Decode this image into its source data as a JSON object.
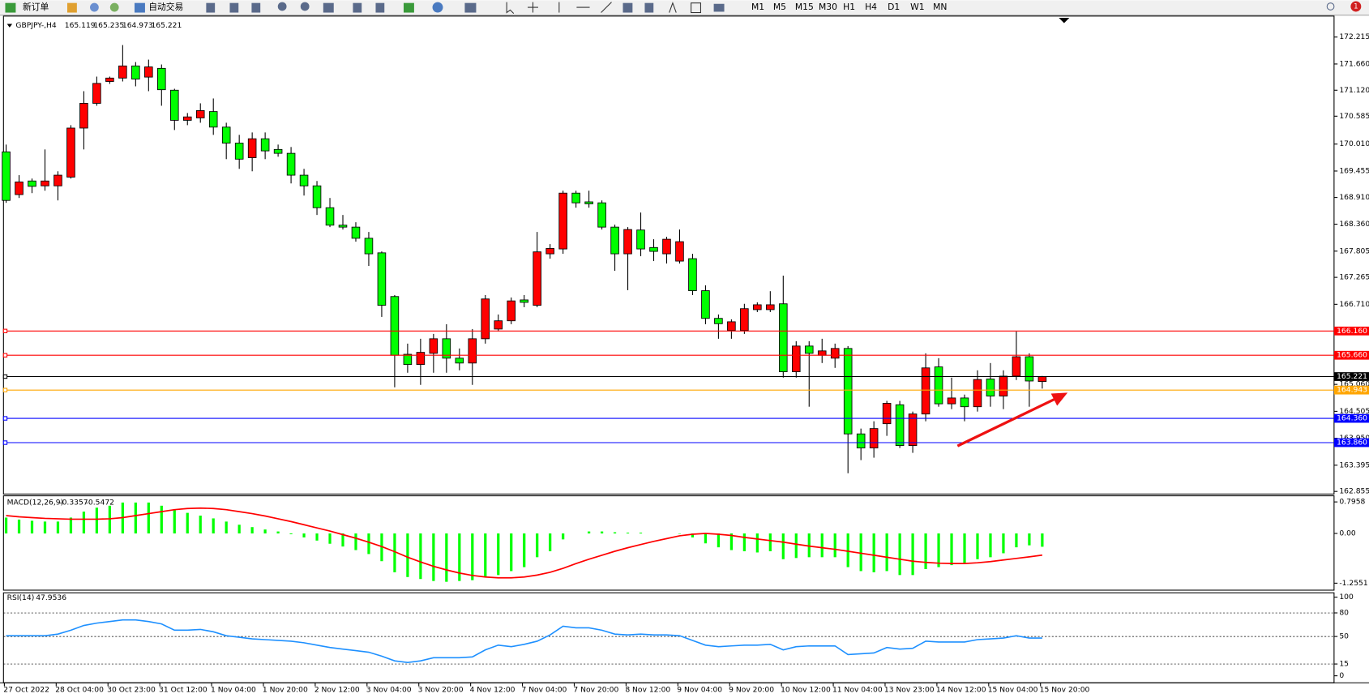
{
  "toolbar": {
    "new_order": "新订单",
    "auto_trading": "自动交易",
    "timeframes": [
      "M1",
      "M5",
      "M15",
      "M30",
      "H1",
      "H4",
      "D1",
      "W1",
      "MN"
    ],
    "badge": "1"
  },
  "chart_data": [
    {
      "type": "candlestick",
      "title": "GBPJPY-,H4",
      "up_color": "#ff0000",
      "down_color": "#00ff00",
      "categories": [
        "27 Oct 2022",
        null,
        null,
        null,
        "28 Oct 04:00",
        null,
        null,
        null,
        "30 Oct 23:00",
        null,
        null,
        null,
        "31 Oct 12:00",
        null,
        null,
        null,
        "1 Nov 04:00",
        null,
        null,
        null,
        "1 Nov 20:00",
        null,
        null,
        null,
        "2 Nov 12:00",
        null,
        null,
        null,
        "3 Nov 04:00",
        null,
        null,
        null,
        "3 Nov 20:00",
        null,
        null,
        null,
        "4 Nov 12:00",
        null,
        null,
        null,
        "7 Nov 04:00",
        null,
        null,
        null,
        "7 Nov 20:00",
        null,
        null,
        null,
        "8 Nov 12:00",
        null,
        null,
        null,
        "9 Nov 04:00",
        null,
        null,
        null,
        "9 Nov 20:00",
        null,
        null,
        null,
        "10 Nov 12:00",
        null,
        null,
        null,
        "11 Nov 04:00",
        null,
        null,
        null,
        "13 Nov 23:00",
        null,
        null,
        null,
        "14 Nov 12:00",
        null,
        null,
        null,
        "15 Nov 04:00",
        null,
        null,
        null,
        "15 Nov 20:00"
      ],
      "open": [
        169.85,
        168.97,
        169.25,
        169.15,
        169.15,
        169.33,
        170.34,
        170.85,
        171.3,
        171.37,
        171.62,
        171.39,
        171.57,
        171.12,
        170.5,
        170.55,
        170.68,
        170.36,
        170.03,
        169.73,
        170.12,
        169.9,
        169.82,
        169.37,
        169.15,
        168.7,
        168.34,
        168.3,
        168.07,
        167.77,
        166.87,
        165.68,
        165.47,
        165.7,
        166.0,
        165.6,
        165.5,
        166.0,
        166.2,
        166.37,
        166.8,
        166.69,
        167.75,
        167.85,
        169.0,
        168.82,
        168.8,
        168.3,
        167.75,
        168.24,
        167.88,
        167.75,
        167.6,
        167.65,
        166.99,
        166.42,
        166.17,
        166.17,
        166.6,
        166.6,
        166.72,
        165.32,
        165.85,
        165.66,
        165.6,
        165.8,
        164.04,
        163.75,
        164.25,
        164.64,
        163.8,
        164.45,
        165.42,
        164.66,
        164.78,
        164.6,
        165.17,
        164.82,
        165.23,
        165.63,
        165.119
      ],
      "high": [
        170.0,
        169.37,
        169.3,
        169.9,
        169.45,
        170.4,
        171.1,
        171.4,
        171.4,
        172.05,
        171.7,
        171.75,
        171.65,
        171.15,
        170.65,
        170.85,
        170.95,
        170.45,
        170.2,
        170.25,
        170.25,
        170.0,
        169.95,
        169.5,
        169.25,
        168.9,
        168.55,
        168.4,
        168.2,
        167.8,
        166.9,
        165.9,
        166.0,
        166.1,
        166.3,
        165.8,
        166.2,
        166.9,
        166.5,
        166.85,
        166.9,
        168.2,
        167.95,
        169.05,
        169.05,
        169.05,
        168.85,
        168.35,
        168.3,
        168.6,
        168.05,
        168.1,
        168.25,
        167.75,
        167.1,
        166.5,
        166.4,
        166.72,
        166.75,
        166.98,
        167.3,
        165.95,
        165.95,
        166.0,
        165.9,
        165.85,
        164.15,
        164.3,
        164.72,
        164.72,
        164.5,
        165.7,
        165.6,
        165.2,
        164.85,
        165.35,
        165.5,
        165.35,
        166.15,
        165.7,
        165.235
      ],
      "low": [
        168.8,
        168.9,
        169.0,
        169.05,
        168.85,
        169.3,
        169.9,
        170.8,
        171.25,
        171.3,
        171.2,
        171.1,
        170.8,
        170.3,
        170.4,
        170.45,
        170.2,
        169.7,
        169.5,
        169.45,
        169.7,
        169.75,
        169.2,
        168.95,
        168.55,
        168.3,
        168.25,
        168.0,
        167.5,
        166.45,
        165.0,
        165.3,
        165.05,
        165.3,
        165.3,
        165.35,
        165.05,
        165.9,
        166.15,
        166.3,
        166.65,
        166.65,
        167.65,
        167.75,
        168.7,
        168.7,
        168.25,
        167.4,
        167.0,
        167.7,
        167.6,
        167.55,
        167.55,
        166.9,
        166.3,
        166.0,
        166.0,
        166.1,
        166.55,
        166.55,
        165.2,
        165.2,
        164.6,
        165.5,
        165.4,
        163.23,
        163.5,
        163.55,
        164.0,
        163.75,
        163.65,
        164.3,
        164.6,
        164.55,
        164.3,
        164.5,
        164.6,
        164.55,
        165.15,
        164.6,
        164.973
      ],
      "close": [
        168.85,
        169.23,
        169.14,
        169.25,
        169.37,
        170.34,
        170.85,
        171.26,
        171.37,
        171.62,
        171.35,
        171.6,
        171.13,
        170.5,
        170.57,
        170.7,
        170.36,
        170.03,
        169.7,
        170.12,
        169.87,
        169.82,
        169.37,
        169.15,
        168.7,
        168.34,
        168.3,
        168.07,
        167.75,
        166.69,
        165.66,
        165.47,
        165.72,
        166.0,
        165.6,
        165.5,
        166.0,
        166.82,
        166.37,
        166.78,
        166.75,
        167.79,
        167.86,
        169.0,
        168.8,
        168.78,
        168.3,
        167.75,
        168.25,
        167.85,
        167.8,
        168.05,
        168.0,
        166.99,
        166.42,
        166.31,
        166.35,
        166.62,
        166.7,
        166.7,
        165.32,
        165.85,
        165.7,
        165.75,
        165.8,
        164.04,
        163.75,
        164.15,
        164.67,
        163.8,
        164.45,
        165.4,
        164.66,
        164.78,
        164.6,
        165.16,
        164.82,
        165.23,
        165.63,
        165.13,
        165.221
      ],
      "ylim": [
        162.801,
        172.647
      ],
      "yticks": [
        172.215,
        {
          "value": 171.66,
          "label": "171.660"
        },
        {
          "value": 171.12,
          "label": "171.120"
        },
        170.585,
        {
          "value": 170.01,
          "label": "170.010"
        },
        169.455,
        {
          "value": 168.91,
          "label": "168.910"
        },
        {
          "value": 168.36,
          "label": "168.360"
        },
        167.805,
        167.265,
        {
          "value": 166.71,
          "label": "166.710"
        },
        {
          "value": 165.06,
          "label": "165.060"
        },
        164.505,
        {
          "value": 163.95,
          "label": "163.950"
        },
        163.395,
        162.855
      ],
      "levels": [
        {
          "value": 166.16,
          "label": "166.160",
          "color": "#ff0000"
        },
        {
          "value": 165.66,
          "label": "165.660",
          "color": "#ff0000"
        },
        {
          "value": 165.221,
          "label": "165.221",
          "color": "#000000"
        },
        {
          "value": 164.943,
          "label": "164.943",
          "color": "#ffa500"
        },
        {
          "value": 164.36,
          "label": "164.360",
          "color": "#0000ff"
        },
        {
          "value": 163.86,
          "label": "163.860",
          "color": "#0000ff"
        }
      ]
    },
    {
      "type": "macd",
      "title": "MACD(12,26,9)",
      "series": [
        {
          "color": "#00ff00",
          "values": [
            0.4,
            0.35,
            0.32,
            0.3,
            0.3,
            0.4,
            0.55,
            0.65,
            0.7,
            0.78,
            0.78,
            0.78,
            0.7,
            0.6,
            0.52,
            0.45,
            0.38,
            0.3,
            0.22,
            0.16,
            0.1,
            0.05,
            -0.02,
            -0.1,
            -0.18,
            -0.26,
            -0.33,
            -0.42,
            -0.52,
            -0.7,
            -0.98,
            -1.1,
            -1.15,
            -1.2,
            -1.22,
            -1.2,
            -1.18,
            -1.1,
            -1.05,
            -0.95,
            -0.85,
            -0.6,
            -0.45,
            -0.15,
            0.0,
            0.05,
            0.05,
            0.03,
            0.02,
            0.02,
            0.0,
            0.0,
            -0.01,
            -0.1,
            -0.25,
            -0.35,
            -0.42,
            -0.45,
            -0.48,
            -0.45,
            -0.65,
            -0.62,
            -0.6,
            -0.6,
            -0.6,
            -0.85,
            -0.95,
            -0.98,
            -0.95,
            -1.05,
            -1.05,
            -0.9,
            -0.85,
            -0.8,
            -0.75,
            -0.65,
            -0.6,
            -0.5,
            -0.35,
            -0.3,
            -0.3357
          ]
        },
        {
          "color": "#ff0000",
          "values": [
            0.45,
            0.42,
            0.4,
            0.38,
            0.37,
            0.36,
            0.36,
            0.36,
            0.37,
            0.4,
            0.45,
            0.5,
            0.55,
            0.6,
            0.63,
            0.64,
            0.63,
            0.6,
            0.55,
            0.5,
            0.44,
            0.37,
            0.3,
            0.22,
            0.14,
            0.06,
            -0.03,
            -0.12,
            -0.22,
            -0.33,
            -0.46,
            -0.6,
            -0.72,
            -0.83,
            -0.92,
            -1.0,
            -1.06,
            -1.1,
            -1.12,
            -1.12,
            -1.1,
            -1.05,
            -0.98,
            -0.88,
            -0.76,
            -0.65,
            -0.55,
            -0.45,
            -0.36,
            -0.28,
            -0.2,
            -0.13,
            -0.06,
            -0.02,
            0.0,
            -0.02,
            -0.05,
            -0.1,
            -0.14,
            -0.18,
            -0.22,
            -0.27,
            -0.32,
            -0.36,
            -0.4,
            -0.45,
            -0.5,
            -0.55,
            -0.6,
            -0.65,
            -0.7,
            -0.73,
            -0.75,
            -0.76,
            -0.76,
            -0.74,
            -0.71,
            -0.67,
            -0.63,
            -0.59,
            -0.5472
          ]
        }
      ],
      "ylim": [
        -1.2551,
        0.7958
      ],
      "yticks": [
        0.7958,
        {
          "value": 0,
          "label": "0.00"
        },
        -1.2551
      ]
    },
    {
      "type": "line",
      "title": "RSI(14)",
      "color": "#1e90ff",
      "grid": true,
      "values": [
        51,
        51,
        51,
        51,
        53,
        58,
        64,
        67,
        69,
        71,
        71,
        69,
        66,
        58,
        58,
        59,
        56,
        51,
        49,
        47,
        46,
        45,
        44,
        42,
        39,
        36,
        34,
        32,
        30,
        25,
        19,
        17,
        19,
        23,
        23,
        23,
        24,
        33,
        39,
        37,
        40,
        44,
        52,
        63,
        61,
        61,
        58,
        53,
        52,
        53,
        52,
        52,
        51,
        45,
        39,
        37,
        38,
        39,
        39,
        40,
        33,
        37,
        38,
        38,
        38,
        27,
        28,
        29,
        36,
        34,
        35,
        44,
        43,
        43,
        43,
        46,
        47,
        48,
        51,
        48,
        47.9536
      ],
      "ylim": [
        0,
        100
      ],
      "yticks": [
        100,
        80,
        50,
        15,
        0
      ]
    }
  ]
}
